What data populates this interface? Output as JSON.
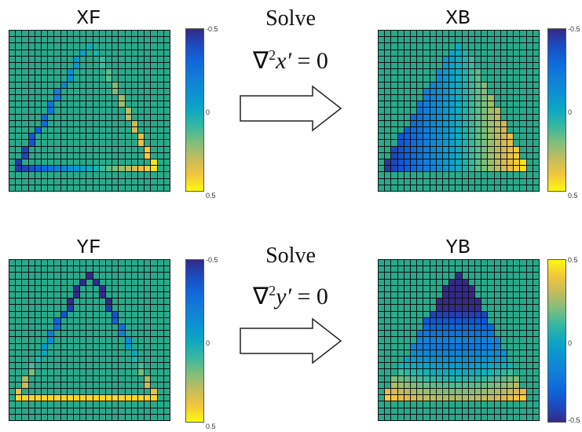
{
  "panels": {
    "xf": {
      "title": "XF",
      "cbar_top": "-0.5",
      "cbar_mid": "0",
      "cbar_bottom": "0.5"
    },
    "xb": {
      "title": "XB",
      "cbar_top": "-0.5",
      "cbar_mid": "0",
      "cbar_bottom": "0.5"
    },
    "yf": {
      "title": "YF",
      "cbar_top": "-0.5",
      "cbar_mid": "0",
      "cbar_bottom": "0.5"
    },
    "yb": {
      "title": "YB",
      "cbar_top": "0.5",
      "cbar_mid": "0",
      "cbar_bottom": "-0.5"
    }
  },
  "row1": {
    "solve": "Solve",
    "eq_var": "x′",
    "eq_rhs": "= 0"
  },
  "row2": {
    "solve": "Solve",
    "eq_var": "y′",
    "eq_rhs": "= 0"
  },
  "colors": {
    "background": "#2aa98a",
    "parula_low": "#352a87",
    "parula_high": "#f9fb0e"
  }
}
